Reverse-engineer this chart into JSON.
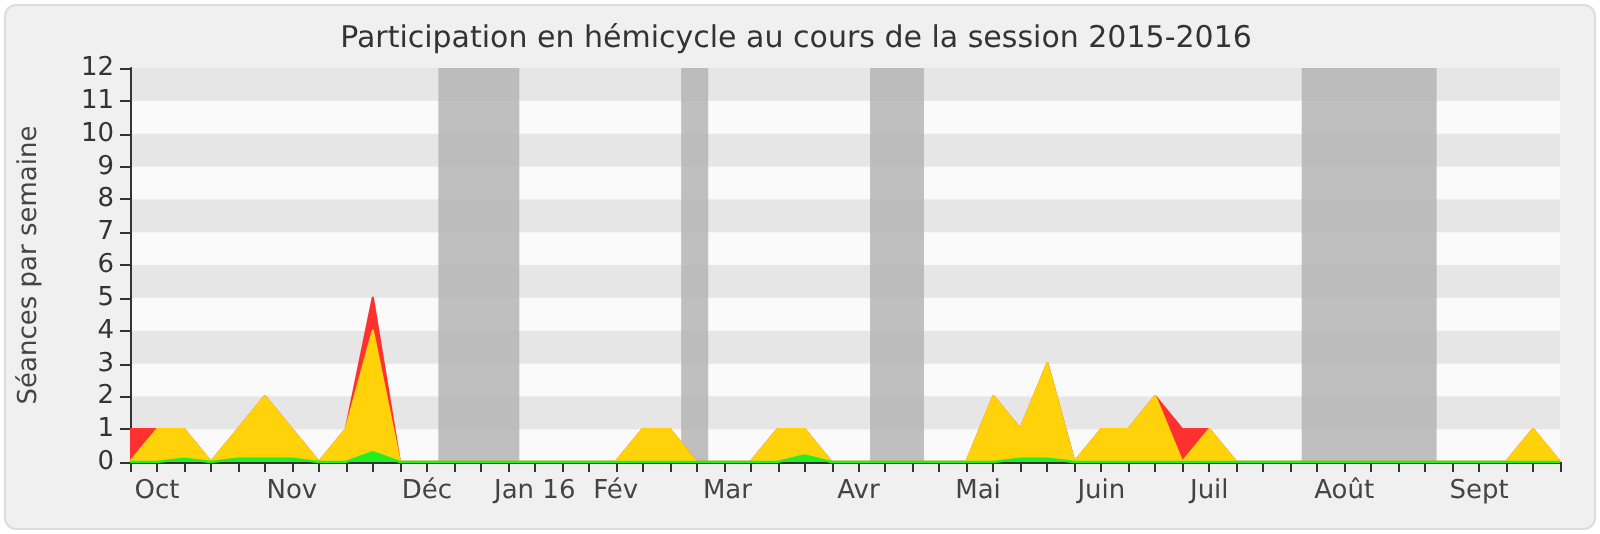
{
  "chart_data": {
    "type": "area",
    "title": "Participation en hémicycle au cours de la session 2015-2016",
    "ylabel": "Séances par semaine",
    "x": [
      "2015-09-28",
      "2015-10-05",
      "2015-10-12",
      "2015-10-19",
      "2015-10-26",
      "2015-11-02",
      "2015-11-09",
      "2015-11-16",
      "2015-11-23",
      "2015-11-30",
      "2015-12-07",
      "2015-12-14",
      "2015-12-21",
      "2015-12-28",
      "2016-01-04",
      "2016-01-11",
      "2016-01-18",
      "2016-01-25",
      "2016-02-01",
      "2016-02-08",
      "2016-02-15",
      "2016-02-22",
      "2016-02-29",
      "2016-03-07",
      "2016-03-14",
      "2016-03-21",
      "2016-03-28",
      "2016-04-04",
      "2016-04-11",
      "2016-04-18",
      "2016-04-25",
      "2016-05-02",
      "2016-05-09",
      "2016-05-16",
      "2016-05-23",
      "2016-05-30",
      "2016-06-06",
      "2016-06-13",
      "2016-06-20",
      "2016-06-27",
      "2016-07-04",
      "2016-07-11",
      "2016-07-18",
      "2016-07-25",
      "2016-08-01",
      "2016-08-08",
      "2016-08-15",
      "2016-08-22",
      "2016-08-29",
      "2016-09-05",
      "2016-09-12",
      "2016-09-19",
      "2016-09-26",
      "2016-10-03"
    ],
    "series": [
      {
        "color": "#ff3030",
        "values": [
          1,
          1,
          1,
          0,
          1,
          2,
          1,
          0,
          1,
          5,
          0,
          0,
          0,
          0,
          0,
          0,
          0,
          0,
          0,
          1,
          1,
          0,
          0,
          0,
          1,
          1,
          0,
          0,
          0,
          0,
          0,
          0,
          2,
          1,
          3,
          0,
          1,
          1,
          2,
          1,
          1,
          0,
          0,
          0,
          0,
          0,
          0,
          0,
          0,
          0,
          0,
          0,
          1,
          0
        ]
      },
      {
        "color": "#ffd20a",
        "values": [
          0,
          1,
          1,
          0,
          1,
          2,
          1,
          0,
          1,
          4,
          0,
          0,
          0,
          0,
          0,
          0,
          0,
          0,
          0,
          1,
          1,
          0,
          0,
          0,
          1,
          1,
          0,
          0,
          0,
          0,
          0,
          0,
          2,
          1,
          3,
          0,
          1,
          1,
          2,
          0,
          1,
          0,
          0,
          0,
          0,
          0,
          0,
          0,
          0,
          0,
          0,
          0,
          1,
          0
        ]
      },
      {
        "color": "#22ee22",
        "values": [
          0,
          0,
          0.1,
          0,
          0.1,
          0.1,
          0.1,
          0,
          0,
          0.3,
          0,
          0,
          0,
          0,
          0,
          0,
          0,
          0,
          0,
          0,
          0,
          0,
          0,
          0,
          0,
          0.2,
          0,
          0,
          0,
          0,
          0,
          0,
          0,
          0.1,
          0.1,
          0,
          0,
          0,
          0,
          0,
          0,
          0,
          0,
          0,
          0,
          0,
          0,
          0,
          0,
          0,
          0,
          0,
          0,
          0
        ]
      }
    ],
    "xlim": [
      "2015-09-28",
      "2016-10-03"
    ],
    "xticks": [
      {
        "value": "2015-10-05",
        "label": "Oct"
      },
      {
        "value": "2015-11-09",
        "label": "Nov"
      },
      {
        "value": "2015-12-14",
        "label": "Déc"
      },
      {
        "value": "2016-01-11",
        "label": "Jan 16"
      },
      {
        "value": "2016-02-01",
        "label": "Fév"
      },
      {
        "value": "2016-03-01",
        "label": "Mar"
      },
      {
        "value": "2016-04-04",
        "label": "Avr"
      },
      {
        "value": "2016-05-05",
        "label": "Mai"
      },
      {
        "value": "2016-06-06",
        "label": "Juin"
      },
      {
        "value": "2016-07-04",
        "label": "Juil"
      },
      {
        "value": "2016-08-08",
        "label": "Août"
      },
      {
        "value": "2016-09-12",
        "label": "Sept"
      }
    ],
    "ylim": [
      0,
      12
    ],
    "yticks": [
      0,
      1,
      2,
      3,
      4,
      5,
      6,
      7,
      8,
      9,
      10,
      11,
      12
    ],
    "bands": [
      {
        "axis": "x",
        "from": "2015-12-17",
        "to": "2016-01-07",
        "color": "#b4b4b4"
      },
      {
        "axis": "x",
        "from": "2016-02-18",
        "to": "2016-02-25",
        "color": "#b4b4b4"
      },
      {
        "axis": "x",
        "from": "2016-04-07",
        "to": "2016-04-21",
        "color": "#b4b4b4"
      },
      {
        "axis": "x",
        "from": "2016-07-28",
        "to": "2016-09-01",
        "color": "#b4b4b4"
      }
    ],
    "marker": "none",
    "line_style": "solid"
  }
}
